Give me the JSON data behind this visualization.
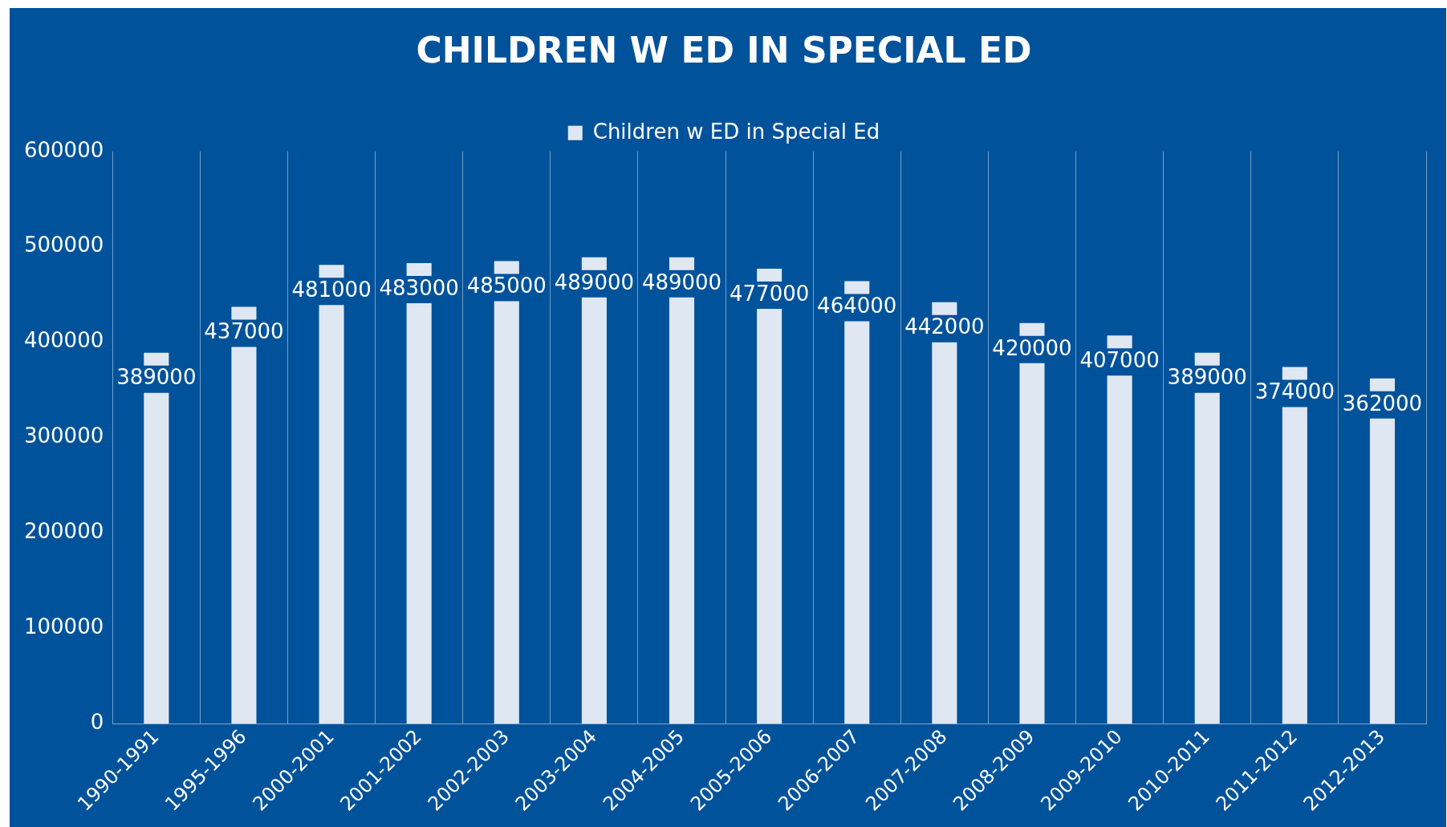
{
  "chart_data": {
    "type": "bar",
    "title": "CHILDREN W ED IN SPECIAL ED",
    "categories": [
      "1990-1991",
      "1995-1996",
      "2000-2001",
      "2001-2002",
      "2002-2003",
      "2003-2004",
      "2004-2005",
      "2005-2006",
      "2006-2007",
      "2007-2008",
      "2008-2009",
      "2009-2010",
      "2010-2011",
      "2011-2012",
      "2012-2013"
    ],
    "series": [
      {
        "name": "Children w ED in Special Ed",
        "color": "#dfe7f2",
        "values": [
          389000,
          437000,
          481000,
          483000,
          485000,
          489000,
          489000,
          477000,
          464000,
          442000,
          420000,
          407000,
          389000,
          374000,
          362000
        ]
      }
    ],
    "ylim": [
      0,
      600000
    ],
    "yticks": [
      0,
      100000,
      200000,
      300000,
      400000,
      500000,
      600000
    ],
    "grid": "x",
    "legend": "top",
    "data_labels": true
  }
}
